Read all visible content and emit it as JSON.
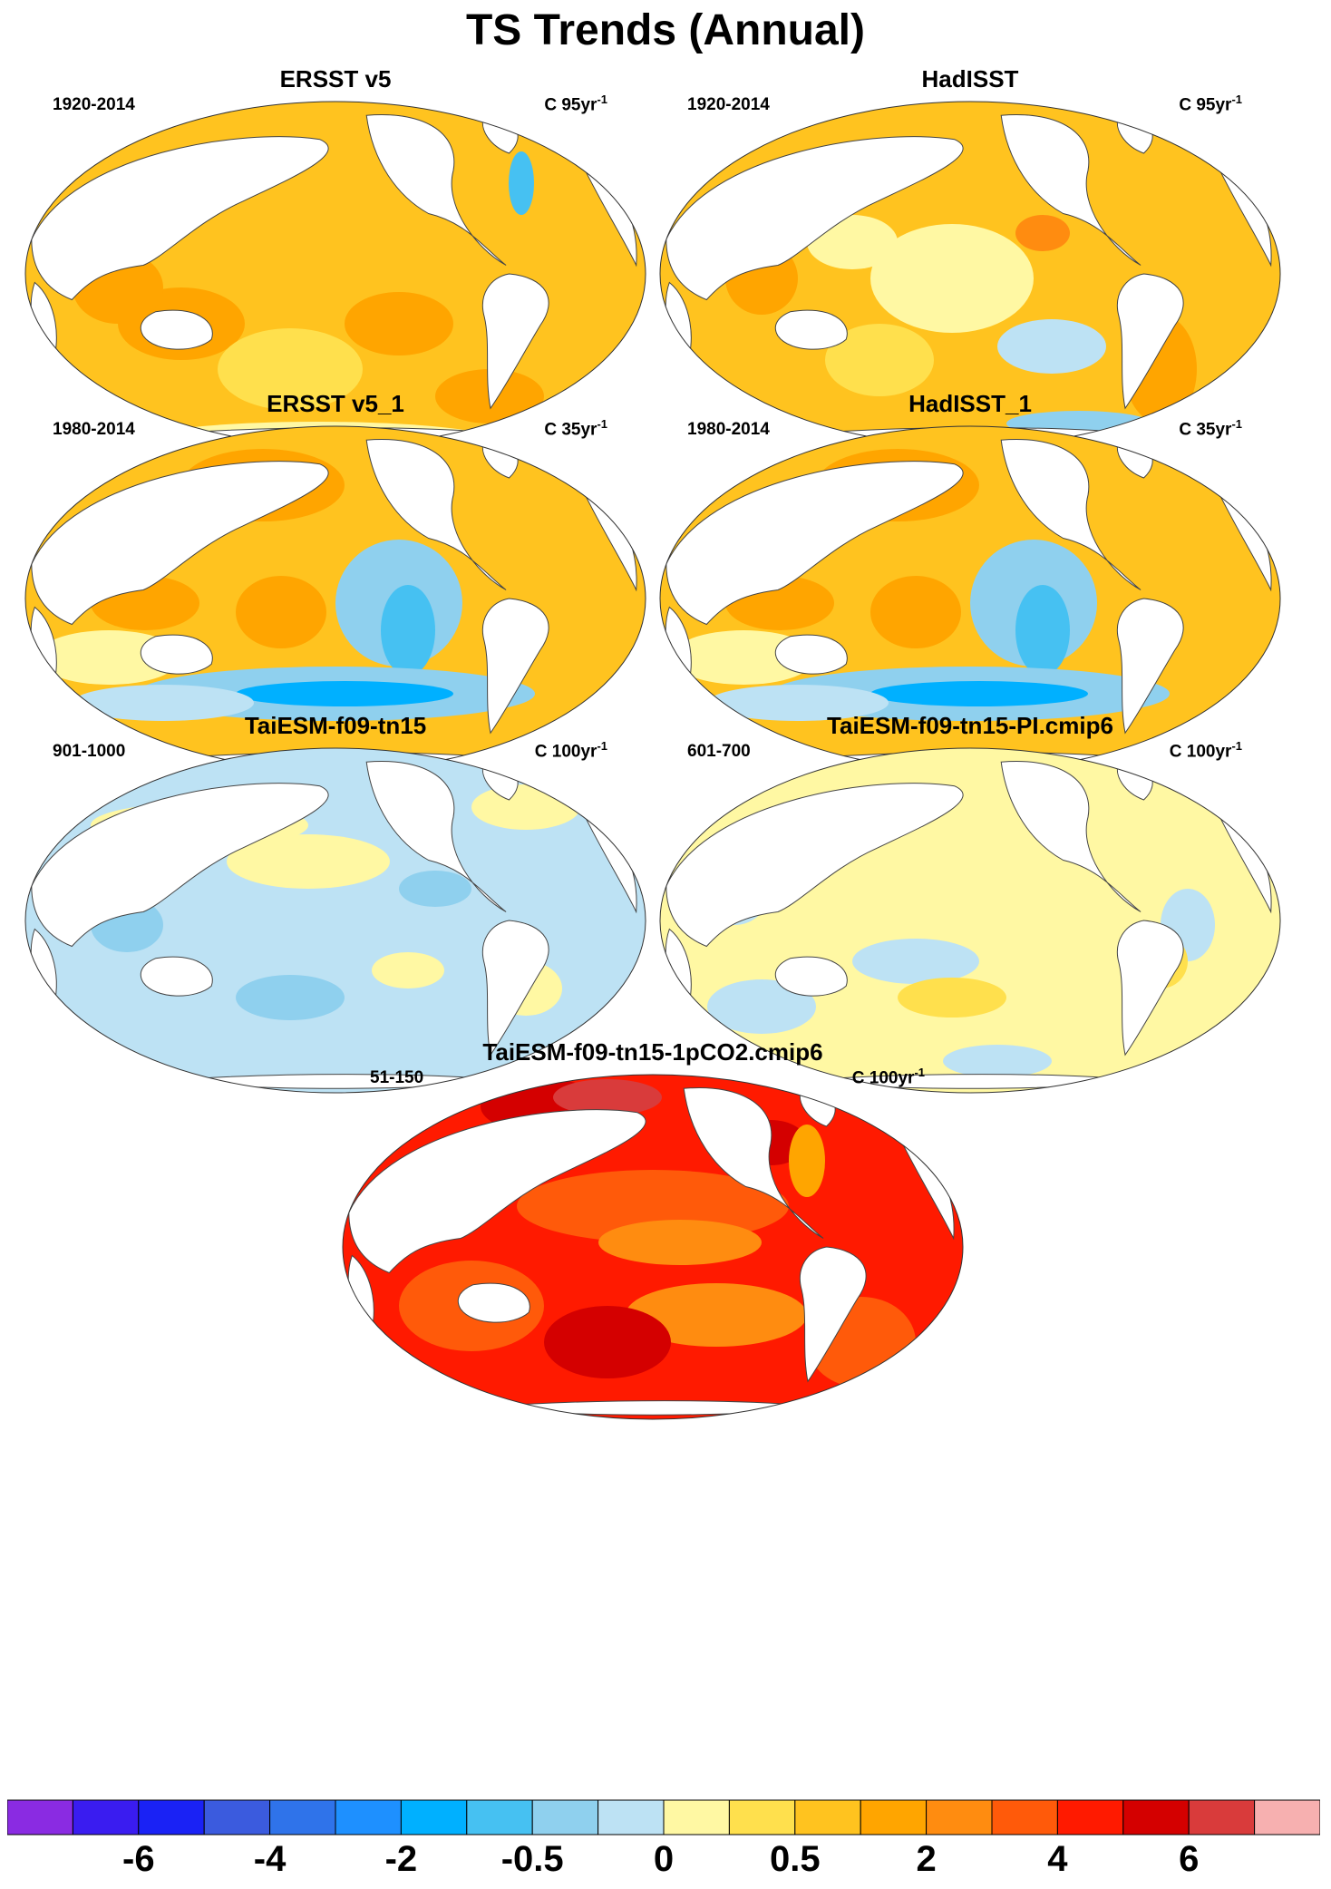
{
  "title": "TS Trends (Annual)",
  "panels": [
    {
      "id": "ersst",
      "title": "ERSST v5",
      "period": "1920-2014",
      "units": "C 95yr",
      "units_exp": "-1",
      "scheme": "warm"
    },
    {
      "id": "hadisst",
      "title": "HadISST",
      "period": "1920-2014",
      "units": "C 95yr",
      "units_exp": "-1",
      "scheme": "warm-mixed"
    },
    {
      "id": "ersst1",
      "title": "ERSST v5_1",
      "period": "1980-2014",
      "units": "C 35yr",
      "units_exp": "-1",
      "scheme": "lanina"
    },
    {
      "id": "hadisst1",
      "title": "HadISST_1",
      "period": "1980-2014",
      "units": "C 35yr",
      "units_exp": "-1",
      "scheme": "lanina"
    },
    {
      "id": "taiesm",
      "title": "TaiESM-f09-tn15",
      "period": "901-1000",
      "units": "C 100yr",
      "units_exp": "-1",
      "scheme": "cool"
    },
    {
      "id": "taiesm_pi",
      "title": "TaiESM-f09-tn15-PI.cmip6",
      "period": "601-700",
      "units": "C 100yr",
      "units_exp": "-1",
      "scheme": "neutral"
    },
    {
      "id": "taiesm_1pct",
      "title": "TaiESM-f09-tn15-1pCO2.cmip6",
      "period": "51-150",
      "units": "C 100yr",
      "units_exp": "-1",
      "scheme": "hot"
    }
  ],
  "colorbar": {
    "colors": [
      "#8a2be2",
      "#3a1cf0",
      "#1a22f5",
      "#3b5bde",
      "#2f73ea",
      "#1e90ff",
      "#00b0ff",
      "#46c1f2",
      "#8fd0ee",
      "#bde2f4",
      "#fff8a3",
      "#ffe04d",
      "#ffc31f",
      "#ffa500",
      "#ff8c10",
      "#ff5a0a",
      "#ff1a00",
      "#d40000",
      "#d93b3b",
      "#f7b0b0"
    ],
    "labels": [
      {
        "text": "-6",
        "boundary": 2
      },
      {
        "text": "-4",
        "boundary": 4
      },
      {
        "text": "-2",
        "boundary": 6
      },
      {
        "text": "-0.5",
        "boundary": 8
      },
      {
        "text": "0",
        "boundary": 10
      },
      {
        "text": "0.5",
        "boundary": 12
      },
      {
        "text": "2",
        "boundary": 14
      },
      {
        "text": "4",
        "boundary": 16
      },
      {
        "text": "6",
        "boundary": 18
      }
    ]
  }
}
